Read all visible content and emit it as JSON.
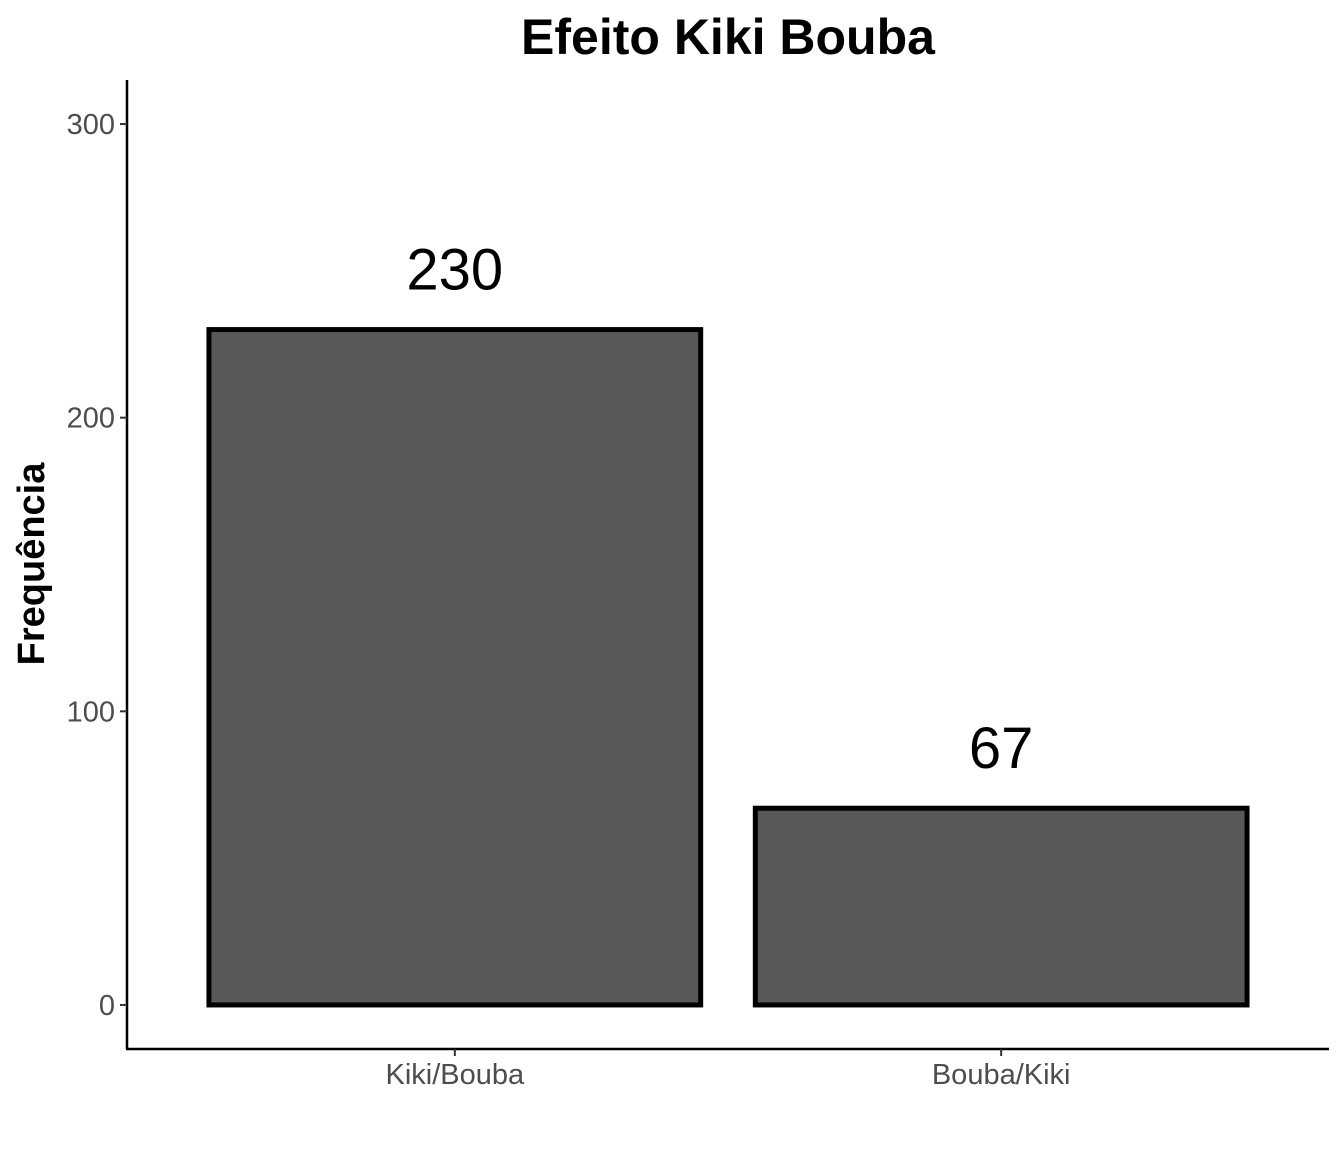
{
  "chart_data": {
    "type": "bar",
    "title": "Efeito Kiki Bouba",
    "xlabel": "",
    "ylabel": "Frequência",
    "categories": [
      "Kiki/Bouba",
      "Bouba/Kiki"
    ],
    "values": [
      230,
      67
    ],
    "data_labels": [
      "230",
      "67"
    ],
    "yticks": [
      0,
      100,
      200,
      300
    ],
    "ylim": [
      -15,
      315
    ],
    "grid": false,
    "legend": "none",
    "bar_fill": "#595959",
    "bar_outline": "#000000"
  }
}
